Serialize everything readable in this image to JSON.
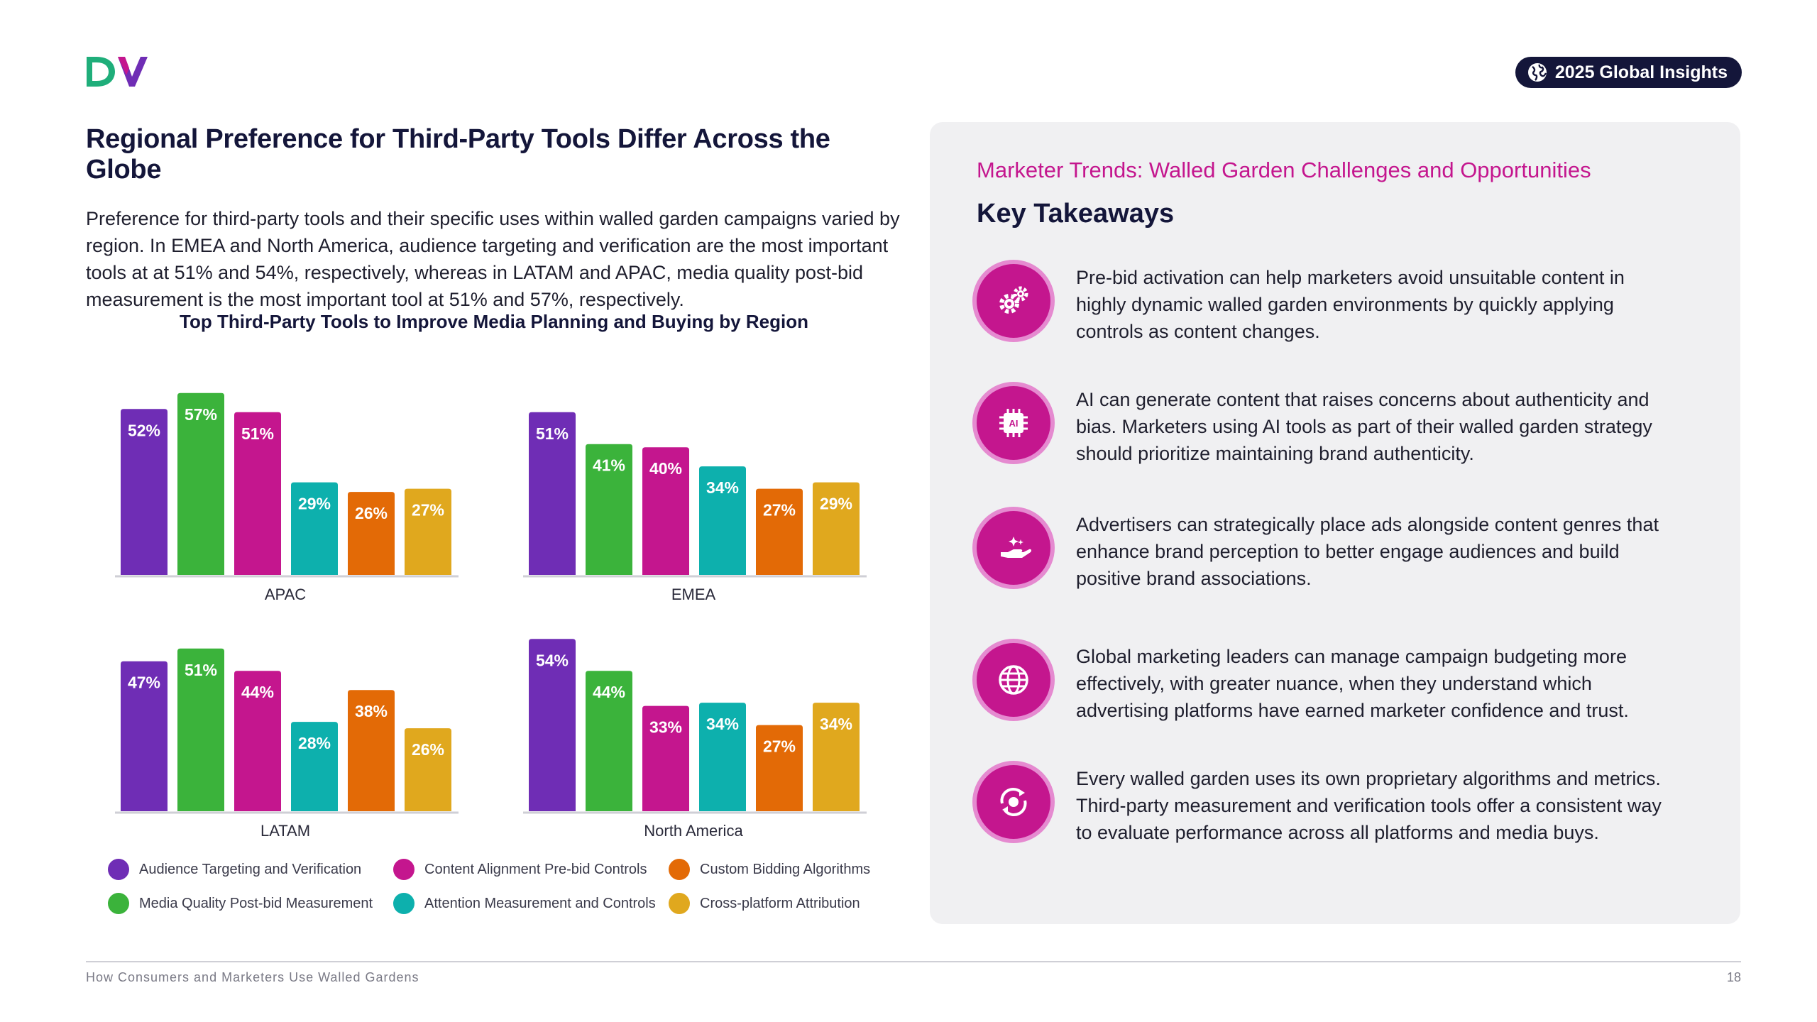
{
  "header": {
    "logo_text": "DV",
    "badge_label": "2025 Global Insights"
  },
  "left": {
    "title": "Regional Preference for Third-Party Tools Differ Across the Globe",
    "intro": "Preference for third-party tools and their specific uses within walled garden campaigns varied by region. In EMEA and North America, audience targeting and verification are the most important tools at  at 51% and 54%, respectively, whereas in LATAM and APAC, media quality post-bid measurement is the most important tool at 51% and 57%, respectively."
  },
  "chart_data": {
    "type": "bar",
    "title": "Top Third-Party Tools to Improve Media Planning and Buying by Region",
    "value_format": "percent",
    "series": [
      {
        "name": "Audience Targeting and Verification",
        "color": "#6f2db5"
      },
      {
        "name": "Media Quality Post-bid Measurement",
        "color": "#3bb33b"
      },
      {
        "name": "Content Alignment Pre-bid Controls",
        "color": "#c4168e"
      },
      {
        "name": "Attention Measurement and Controls",
        "color": "#0db0ad"
      },
      {
        "name": "Custom Bidding Algorithms",
        "color": "#e36a06"
      },
      {
        "name": "Cross-platform Attribution",
        "color": "#e0a81e"
      }
    ],
    "panels": [
      {
        "region": "APAC",
        "values": [
          52,
          57,
          51,
          29,
          26,
          27
        ]
      },
      {
        "region": "EMEA",
        "values": [
          51,
          41,
          40,
          34,
          27,
          29
        ]
      },
      {
        "region": "LATAM",
        "values": [
          47,
          51,
          44,
          28,
          38,
          26
        ]
      },
      {
        "region": "North America",
        "values": [
          54,
          44,
          33,
          34,
          27,
          34
        ]
      }
    ],
    "ylim": [
      0,
      60
    ]
  },
  "legend_order": [
    0,
    2,
    4,
    1,
    3,
    5
  ],
  "panel": {
    "kicker": "Marketer Trends: Walled Garden Challenges and Opportunities",
    "heading": "Key Takeaways",
    "takeaways": [
      {
        "icon": "gears-icon",
        "text": "Pre-bid activation can help marketers avoid unsuitable content in highly dynamic walled garden environments by quickly applying controls as content changes."
      },
      {
        "icon": "ai-chip-icon",
        "text": "AI can generate content that raises concerns about authenticity and bias. Marketers using AI tools as part of their walled garden strategy should prioritize maintaining brand authenticity."
      },
      {
        "icon": "hand-sparkle-icon",
        "text": "Advertisers can strategically place ads alongside content genres that enhance brand perception to better engage audiences and build positive brand associations."
      },
      {
        "icon": "globe-icon",
        "text": "Global marketing leaders can manage campaign budgeting more effectively, with greater nuance, when they understand which advertising platforms have earned marketer confidence and trust."
      },
      {
        "icon": "cycle-icon",
        "text": "Every walled garden uses its own proprietary algorithms and metrics. Third-party measurement and verification tools offer a consistent way to evaluate performance across all platforms and media buys."
      }
    ]
  },
  "footer": {
    "left": "How Consumers and Marketers Use Walled Gardens",
    "page_number": "18"
  }
}
